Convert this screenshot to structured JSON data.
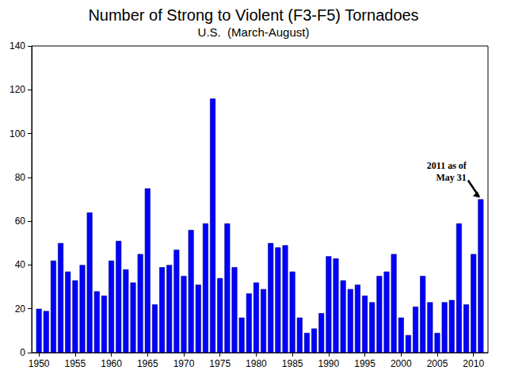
{
  "chart_data": {
    "type": "bar",
    "title": "Number of Strong to Violent (F3-F5) Tornadoes",
    "subtitle": "U.S.  (March-August)",
    "x": [
      1950,
      1951,
      1952,
      1953,
      1954,
      1955,
      1956,
      1957,
      1958,
      1959,
      1960,
      1961,
      1962,
      1963,
      1964,
      1965,
      1966,
      1967,
      1968,
      1969,
      1970,
      1971,
      1972,
      1973,
      1974,
      1975,
      1976,
      1977,
      1978,
      1979,
      1980,
      1981,
      1982,
      1983,
      1984,
      1985,
      1986,
      1987,
      1988,
      1989,
      1990,
      1991,
      1992,
      1993,
      1994,
      1995,
      1996,
      1997,
      1998,
      1999,
      2000,
      2001,
      2002,
      2003,
      2004,
      2005,
      2006,
      2007,
      2008,
      2009,
      2010,
      2011
    ],
    "values": [
      20,
      19,
      42,
      50,
      37,
      33,
      40,
      64,
      28,
      26,
      42,
      51,
      38,
      32,
      45,
      75,
      22,
      39,
      40,
      47,
      35,
      56,
      31,
      59,
      116,
      34,
      59,
      39,
      16,
      27,
      32,
      29,
      50,
      48,
      49,
      37,
      16,
      9,
      11,
      18,
      44,
      43,
      33,
      29,
      31,
      26,
      23,
      35,
      37,
      45,
      16,
      8,
      21,
      35,
      23,
      9,
      23,
      24,
      59,
      22,
      45,
      70
    ],
    "color": "#0000ff",
    "xlim": [
      1949,
      2012
    ],
    "xticks": [
      1950,
      1955,
      1960,
      1965,
      1970,
      1975,
      1980,
      1985,
      1990,
      1995,
      2000,
      2005,
      2010
    ],
    "ylim": [
      0,
      140
    ],
    "yticks": [
      0,
      20,
      40,
      60,
      80,
      100,
      120,
      140
    ],
    "grid": false,
    "annotation": {
      "text": [
        "2011 as of",
        "May 31"
      ],
      "x": 2011,
      "y": 70
    }
  }
}
